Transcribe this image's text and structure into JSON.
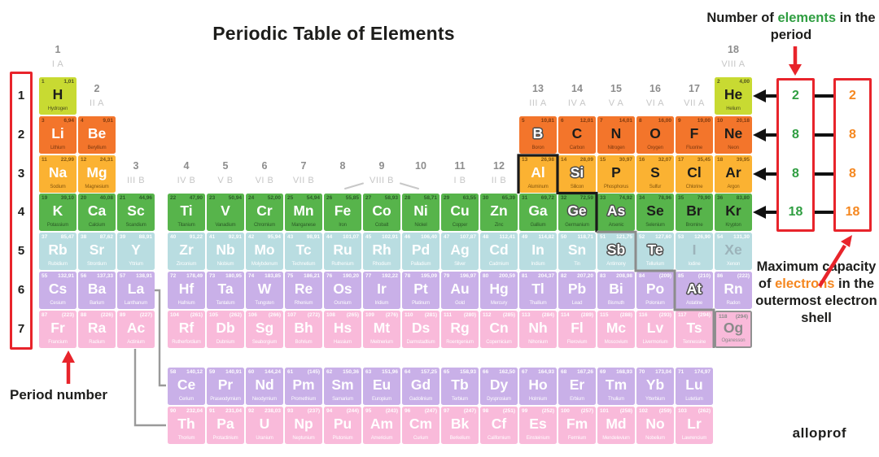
{
  "title": "Periodic Table of Elements",
  "brand": "alloprof",
  "colors": {
    "red_accent": "#e8242b",
    "green_accent": "#2f9e41",
    "orange_accent": "#f5871f",
    "period_1": "#c8da32",
    "period_2": "#f3752b",
    "period_3": "#fbb232",
    "period_4": "#57b44b",
    "period_5": "#b9dde1",
    "period_6": "#c9b0e8",
    "period_7": "#f9bada"
  },
  "left_rail": {
    "label": "Period number",
    "periods": [
      "1",
      "2",
      "3",
      "4",
      "5",
      "6",
      "7"
    ]
  },
  "right_panel": {
    "elements_label": {
      "pre": "Number of ",
      "highlight": "elements",
      "post": " in the period"
    },
    "capacity_label": {
      "pre": "Maximum capacity of ",
      "highlight": "electrons",
      "post": " in the outermost electron shell"
    },
    "elements_per_period": [
      "2",
      "8",
      "8",
      "18"
    ],
    "electron_capacity": [
      "2",
      "8",
      "8",
      "18"
    ]
  },
  "group_labels": [
    {
      "n": "1",
      "r": "I A",
      "g": 1,
      "row": 1
    },
    {
      "n": "2",
      "r": "II A",
      "g": 2,
      "row": 2
    },
    {
      "n": "3",
      "r": "III B",
      "g": 3,
      "row": 4
    },
    {
      "n": "4",
      "r": "IV B",
      "g": 4,
      "row": 4
    },
    {
      "n": "5",
      "r": "V B",
      "g": 5,
      "row": 4
    },
    {
      "n": "6",
      "r": "VI B",
      "g": 6,
      "row": 4
    },
    {
      "n": "7",
      "r": "VII B",
      "g": 7,
      "row": 4
    },
    {
      "n": "8",
      "r": "",
      "g": 8,
      "row": 4
    },
    {
      "n": "9",
      "r": "VIII B",
      "g": 9,
      "row": 4
    },
    {
      "n": "10",
      "r": "",
      "g": 10,
      "row": 4
    },
    {
      "n": "11",
      "r": "I B",
      "g": 11,
      "row": 4
    },
    {
      "n": "12",
      "r": "II B",
      "g": 12,
      "row": 4
    },
    {
      "n": "13",
      "r": "III A",
      "g": 13,
      "row": 2
    },
    {
      "n": "14",
      "r": "IV A",
      "g": 14,
      "row": 2
    },
    {
      "n": "15",
      "r": "V A",
      "g": 15,
      "row": 2
    },
    {
      "n": "16",
      "r": "VI A",
      "g": 16,
      "row": 2
    },
    {
      "n": "17",
      "r": "VII A",
      "g": 17,
      "row": 2
    },
    {
      "n": "18",
      "r": "VIII A",
      "g": 18,
      "row": 1
    }
  ],
  "elements": [
    [
      "H",
      1,
      "1,01",
      "Hydrogen",
      1,
      "1",
      "k"
    ],
    [
      "He",
      2,
      "4,00",
      "Helium",
      18,
      "1",
      "k"
    ],
    [
      "Li",
      3,
      "6,94",
      "Lithium",
      1,
      "2",
      "w"
    ],
    [
      "Be",
      4,
      "9,01",
      "Beryllium",
      2,
      "2",
      "w"
    ],
    [
      "B",
      5,
      "10,81",
      "Boron",
      13,
      "2",
      "o"
    ],
    [
      "C",
      6,
      "12,01",
      "Carbon",
      14,
      "2",
      "k"
    ],
    [
      "N",
      7,
      "14,01",
      "Nitrogen",
      15,
      "2",
      "k"
    ],
    [
      "O",
      8,
      "16,00",
      "Oxygen",
      16,
      "2",
      "k"
    ],
    [
      "F",
      9,
      "19,00",
      "Fluorine",
      17,
      "2",
      "k"
    ],
    [
      "Ne",
      10,
      "20,18",
      "Neon",
      18,
      "2",
      "k"
    ],
    [
      "Na",
      11,
      "22,99",
      "Sodium",
      1,
      "3",
      "w"
    ],
    [
      "Mg",
      12,
      "24,31",
      "Magnesium",
      2,
      "3",
      "w"
    ],
    [
      "Al",
      13,
      "26,98",
      "Aluminum",
      13,
      "3",
      "w"
    ],
    [
      "Si",
      14,
      "28,09",
      "Silicon",
      14,
      "3",
      "o"
    ],
    [
      "P",
      15,
      "30,97",
      "Phosphorus",
      15,
      "3",
      "k"
    ],
    [
      "S",
      16,
      "32,07",
      "Sulfur",
      16,
      "3",
      "k"
    ],
    [
      "Cl",
      17,
      "35,45",
      "Chlorine",
      17,
      "3",
      "k"
    ],
    [
      "Ar",
      18,
      "39,95",
      "Argon",
      18,
      "3",
      "k"
    ],
    [
      "K",
      19,
      "39,10",
      "Potassium",
      1,
      "4",
      "w"
    ],
    [
      "Ca",
      20,
      "40,08",
      "Calcium",
      2,
      "4",
      "w"
    ],
    [
      "Sc",
      21,
      "44,96",
      "Scandium",
      3,
      "4",
      "w"
    ],
    [
      "Ti",
      22,
      "47,90",
      "Titanium",
      4,
      "4",
      "w"
    ],
    [
      "V",
      23,
      "50,94",
      "Vanadium",
      5,
      "4",
      "w"
    ],
    [
      "Cr",
      24,
      "52,00",
      "Chromium",
      6,
      "4",
      "w"
    ],
    [
      "Mn",
      25,
      "54,94",
      "Manganese",
      7,
      "4",
      "w"
    ],
    [
      "Fe",
      26,
      "55,85",
      "Iron",
      8,
      "4",
      "w"
    ],
    [
      "Co",
      27,
      "58,93",
      "Cobalt",
      9,
      "4",
      "w"
    ],
    [
      "Ni",
      28,
      "58,71",
      "Nickel",
      10,
      "4",
      "w"
    ],
    [
      "Cu",
      29,
      "63,55",
      "Copper",
      11,
      "4",
      "w"
    ],
    [
      "Zn",
      30,
      "65,39",
      "Zinc",
      12,
      "4",
      "w"
    ],
    [
      "Ga",
      31,
      "69,72",
      "Gallium",
      13,
      "4",
      "w"
    ],
    [
      "Ge",
      32,
      "72,59",
      "Germanium",
      14,
      "4",
      "o"
    ],
    [
      "As",
      33,
      "74,92",
      "Arsenic",
      15,
      "4",
      "o"
    ],
    [
      "Se",
      34,
      "78,96",
      "Selenium",
      16,
      "4",
      "k"
    ],
    [
      "Br",
      35,
      "79,90",
      "Bromine",
      17,
      "4",
      "k"
    ],
    [
      "Kr",
      36,
      "83,80",
      "Krypton",
      18,
      "4",
      "k"
    ],
    [
      "Rb",
      37,
      "85,47",
      "Rubidium",
      1,
      "5",
      "w"
    ],
    [
      "Sr",
      38,
      "87,62",
      "Strontium",
      2,
      "5",
      "w"
    ],
    [
      "Y",
      39,
      "88,91",
      "Yttrium",
      3,
      "5",
      "w"
    ],
    [
      "Zr",
      40,
      "91,22",
      "Zirconium",
      4,
      "5",
      "w"
    ],
    [
      "Nb",
      41,
      "92,91",
      "Niobium",
      5,
      "5",
      "w"
    ],
    [
      "Mo",
      42,
      "95,94",
      "Molybdenum",
      6,
      "5",
      "w"
    ],
    [
      "Tc",
      43,
      "98,91",
      "Technetium",
      7,
      "5",
      "w"
    ],
    [
      "Ru",
      44,
      "101,07",
      "Ruthenium",
      8,
      "5",
      "w"
    ],
    [
      "Rh",
      45,
      "102,91",
      "Rhodium",
      9,
      "5",
      "w"
    ],
    [
      "Pd",
      46,
      "106,40",
      "Palladium",
      10,
      "5",
      "w"
    ],
    [
      "Ag",
      47,
      "107,87",
      "Silver",
      11,
      "5",
      "w"
    ],
    [
      "Cd",
      48,
      "112,41",
      "Cadmium",
      12,
      "5",
      "w"
    ],
    [
      "In",
      49,
      "114,82",
      "Indium",
      13,
      "5",
      "w"
    ],
    [
      "Sn",
      50,
      "118,71",
      "Tin",
      14,
      "5",
      "w"
    ],
    [
      "Sb",
      51,
      "121,75",
      "Antimony",
      15,
      "5",
      "o"
    ],
    [
      "Te",
      52,
      "127,60",
      "Tellurium",
      16,
      "5",
      "o"
    ],
    [
      "I",
      53,
      "126,90",
      "Iodine",
      17,
      "5",
      "g"
    ],
    [
      "Xe",
      54,
      "131,30",
      "Xenon",
      18,
      "5",
      "g"
    ],
    [
      "Cs",
      55,
      "132,91",
      "Cesium",
      1,
      "6",
      "w"
    ],
    [
      "Ba",
      56,
      "137,33",
      "Barium",
      2,
      "6",
      "w"
    ],
    [
      "La",
      57,
      "138,91",
      "Lanthanum",
      3,
      "6",
      "w"
    ],
    [
      "Hf",
      72,
      "178,49",
      "Hafnium",
      4,
      "6",
      "w"
    ],
    [
      "Ta",
      73,
      "180,95",
      "Tantalum",
      5,
      "6",
      "w"
    ],
    [
      "W",
      74,
      "183,85",
      "Tungsten",
      6,
      "6",
      "w"
    ],
    [
      "Re",
      75,
      "186,21",
      "Rhenium",
      7,
      "6",
      "w"
    ],
    [
      "Os",
      76,
      "190,20",
      "Osmium",
      8,
      "6",
      "w"
    ],
    [
      "Ir",
      77,
      "192,22",
      "Iridium",
      9,
      "6",
      "w"
    ],
    [
      "Pt",
      78,
      "195,09",
      "Platinum",
      10,
      "6",
      "w"
    ],
    [
      "Au",
      79,
      "196,97",
      "Gold",
      11,
      "6",
      "w"
    ],
    [
      "Hg",
      80,
      "200,59",
      "Mercury",
      12,
      "6",
      "w"
    ],
    [
      "Tl",
      81,
      "204,37",
      "Thallium",
      13,
      "6",
      "w"
    ],
    [
      "Pb",
      82,
      "207,20",
      "Lead",
      14,
      "6",
      "w"
    ],
    [
      "Bi",
      83,
      "208,98",
      "Bismuth",
      15,
      "6",
      "w"
    ],
    [
      "Po",
      84,
      "(209)",
      "Polonium",
      16,
      "6",
      "w"
    ],
    [
      "At",
      85,
      "(210)",
      "Astatine",
      17,
      "6",
      "o"
    ],
    [
      "Rn",
      86,
      "(222)",
      "Radon",
      18,
      "6",
      "w"
    ],
    [
      "Fr",
      87,
      "(223)",
      "Francium",
      1,
      "7",
      "w"
    ],
    [
      "Ra",
      88,
      "(226)",
      "Radium",
      2,
      "7",
      "w"
    ],
    [
      "Ac",
      89,
      "(227)",
      "Actinium",
      3,
      "7",
      "w"
    ],
    [
      "Rf",
      104,
      "(261)",
      "Rutherfordium",
      4,
      "7",
      "w"
    ],
    [
      "Db",
      105,
      "(262)",
      "Dubnium",
      5,
      "7",
      "w"
    ],
    [
      "Sg",
      106,
      "(266)",
      "Seaborgium",
      6,
      "7",
      "w"
    ],
    [
      "Bh",
      107,
      "(272)",
      "Bohrium",
      7,
      "7",
      "w"
    ],
    [
      "Hs",
      108,
      "(265)",
      "Hassium",
      8,
      "7",
      "w"
    ],
    [
      "Mt",
      109,
      "(276)",
      "Meitnerium",
      9,
      "7",
      "w"
    ],
    [
      "Ds",
      110,
      "(281)",
      "Darmstadtium",
      10,
      "7",
      "w"
    ],
    [
      "Rg",
      111,
      "(280)",
      "Roentgenium",
      11,
      "7",
      "w"
    ],
    [
      "Cn",
      112,
      "(285)",
      "Copernicium",
      12,
      "7",
      "w"
    ],
    [
      "Nh",
      113,
      "(284)",
      "Nihonium",
      13,
      "7",
      "w"
    ],
    [
      "Fl",
      114,
      "(289)",
      "Flerovium",
      14,
      "7",
      "w"
    ],
    [
      "Mc",
      115,
      "(288)",
      "Moscovium",
      15,
      "7",
      "w"
    ],
    [
      "Lv",
      116,
      "(293)",
      "Livermorium",
      16,
      "7",
      "w"
    ],
    [
      "Ts",
      117,
      "(294)",
      "Tennessine",
      17,
      "7",
      "w"
    ],
    [
      "Og",
      118,
      "(294)",
      "Oganesson",
      18,
      "7",
      "x"
    ],
    [
      "Ce",
      58,
      "140,12",
      "Cerium",
      4,
      "L",
      "w"
    ],
    [
      "Pr",
      59,
      "140,91",
      "Praseodymium",
      5,
      "L",
      "w"
    ],
    [
      "Nd",
      60,
      "144,24",
      "Neodymium",
      6,
      "L",
      "w"
    ],
    [
      "Pm",
      61,
      "(145)",
      "Promethium",
      7,
      "L",
      "w"
    ],
    [
      "Sm",
      62,
      "150,36",
      "Samarium",
      8,
      "L",
      "w"
    ],
    [
      "Eu",
      63,
      "151,96",
      "Europium",
      9,
      "L",
      "w"
    ],
    [
      "Gd",
      64,
      "157,25",
      "Gadolinium",
      10,
      "L",
      "w"
    ],
    [
      "Tb",
      65,
      "158,93",
      "Terbium",
      11,
      "L",
      "w"
    ],
    [
      "Dy",
      66,
      "162,50",
      "Dysprosium",
      12,
      "L",
      "w"
    ],
    [
      "Ho",
      67,
      "164,93",
      "Holmium",
      13,
      "L",
      "w"
    ],
    [
      "Er",
      68,
      "167,26",
      "Erbium",
      14,
      "L",
      "w"
    ],
    [
      "Tm",
      69,
      "168,93",
      "Thulium",
      15,
      "L",
      "w"
    ],
    [
      "Yb",
      70,
      "173,04",
      "Ytterbium",
      16,
      "L",
      "w"
    ],
    [
      "Lu",
      71,
      "174,97",
      "Lutetium",
      17,
      "L",
      "w"
    ],
    [
      "Th",
      90,
      "232,04",
      "Thorium",
      4,
      "A",
      "w"
    ],
    [
      "Pa",
      91,
      "231,04",
      "Protactinium",
      5,
      "A",
      "w"
    ],
    [
      "U",
      92,
      "238,03",
      "Uranium",
      6,
      "A",
      "w"
    ],
    [
      "Np",
      93,
      "(237)",
      "Neptunium",
      7,
      "A",
      "w"
    ],
    [
      "Pu",
      94,
      "(244)",
      "Plutonium",
      8,
      "A",
      "w"
    ],
    [
      "Am",
      95,
      "(243)",
      "Americium",
      9,
      "A",
      "w"
    ],
    [
      "Cm",
      96,
      "(247)",
      "Curium",
      10,
      "A",
      "w"
    ],
    [
      "Bk",
      97,
      "(247)",
      "Berkelium",
      11,
      "A",
      "w"
    ],
    [
      "Cf",
      98,
      "(251)",
      "Californium",
      12,
      "A",
      "w"
    ],
    [
      "Es",
      99,
      "(252)",
      "Einsteinium",
      13,
      "A",
      "w"
    ],
    [
      "Fm",
      100,
      "(257)",
      "Fermium",
      14,
      "A",
      "w"
    ],
    [
      "Md",
      101,
      "(258)",
      "Mendelevium",
      15,
      "A",
      "w"
    ],
    [
      "No",
      102,
      "(259)",
      "Nobelium",
      16,
      "A",
      "w"
    ],
    [
      "Lr",
      103,
      "(262)",
      "Lawrencium",
      17,
      "A",
      "w"
    ]
  ]
}
